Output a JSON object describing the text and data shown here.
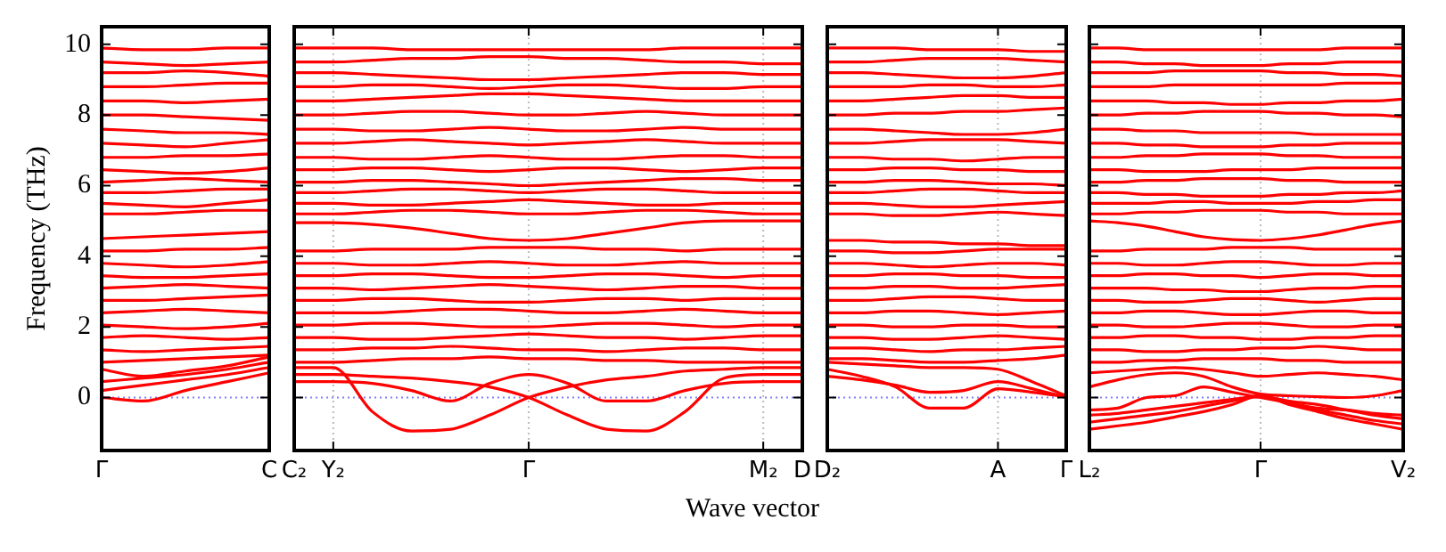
{
  "chart_data": [
    {
      "type": "line",
      "ylabel": "Frequency (THz)",
      "color": "#ff0000",
      "categories": [
        "Γ",
        null,
        null,
        null,
        "C"
      ],
      "ylim": [
        -1.5,
        10.5
      ],
      "yticks": [
        0,
        2,
        4,
        6,
        8,
        10
      ],
      "ref_lines": [
        {
          "axis": "y",
          "value": 0,
          "color": "#8080ff",
          "line_style": "dotted"
        }
      ],
      "series": [
        {
          "values": [
            0,
            -0.1,
            0.2,
            0.45,
            0.7
          ]
        },
        {
          "values": [
            0.2,
            0.35,
            0.5,
            0.65,
            0.85
          ]
        },
        {
          "values": [
            0.45,
            0.55,
            0.65,
            0.8,
            1.0
          ]
        },
        {
          "values": [
            0.8,
            0.6,
            0.75,
            0.9,
            1.15
          ]
        },
        {
          "values": [
            4.5,
            4.55,
            4.6,
            4.65,
            4.7
          ]
        },
        {
          "values": [
            1.0,
            1.05,
            1.1,
            1.15,
            1.2
          ]
        },
        {
          "values": [
            1.35,
            1.3,
            1.35,
            1.4,
            1.45
          ]
        },
        {
          "values": [
            1.7,
            1.75,
            1.7,
            1.65,
            1.7
          ]
        },
        {
          "values": [
            2.05,
            2.0,
            1.95,
            2.0,
            2.1
          ]
        },
        {
          "values": [
            2.4,
            2.45,
            2.5,
            2.45,
            2.4
          ]
        },
        {
          "values": [
            2.75,
            2.75,
            2.8,
            2.85,
            2.9
          ]
        },
        {
          "values": [
            3.1,
            3.15,
            3.2,
            3.15,
            3.1
          ]
        },
        {
          "values": [
            3.45,
            3.4,
            3.4,
            3.45,
            3.5
          ]
        },
        {
          "values": [
            3.8,
            3.75,
            3.7,
            3.75,
            3.85
          ]
        },
        {
          "values": [
            4.15,
            4.15,
            4.2,
            4.2,
            4.25
          ]
        },
        {
          "values": [
            5.2,
            5.2,
            5.25,
            5.3,
            5.3
          ]
        },
        {
          "values": [
            5.5,
            5.45,
            5.4,
            5.5,
            5.6
          ]
        },
        {
          "values": [
            5.8,
            5.8,
            5.85,
            5.9,
            5.9
          ]
        },
        {
          "values": [
            6.1,
            6.15,
            6.2,
            6.15,
            6.1
          ]
        },
        {
          "values": [
            6.45,
            6.4,
            6.35,
            6.4,
            6.5
          ]
        },
        {
          "values": [
            6.8,
            6.8,
            6.85,
            6.85,
            6.9
          ]
        },
        {
          "values": [
            7.2,
            7.15,
            7.1,
            7.2,
            7.3
          ]
        },
        {
          "values": [
            7.6,
            7.55,
            7.5,
            7.5,
            7.45
          ]
        },
        {
          "values": [
            8.0,
            8.0,
            7.95,
            7.9,
            7.85
          ]
        },
        {
          "values": [
            8.4,
            8.4,
            8.35,
            8.4,
            8.45
          ]
        },
        {
          "values": [
            8.8,
            8.8,
            8.85,
            8.9,
            8.9
          ]
        },
        {
          "values": [
            9.2,
            9.2,
            9.25,
            9.2,
            9.1
          ]
        },
        {
          "values": [
            9.5,
            9.45,
            9.4,
            9.45,
            9.5
          ]
        },
        {
          "values": [
            9.9,
            9.85,
            9.85,
            9.9,
            9.9
          ]
        }
      ]
    },
    {
      "type": "line",
      "xlabel": "Wave vector",
      "color": "#ff0000",
      "categories": [
        "C₂",
        "Y₂",
        null,
        null,
        null,
        null,
        "Γ",
        null,
        null,
        null,
        null,
        null,
        "M₂",
        "D"
      ],
      "ylim": [
        -1.5,
        10.5
      ],
      "yticks": [
        0,
        2,
        4,
        6,
        8,
        10
      ],
      "tick_labels": "x",
      "ref_lines": [
        {
          "axis": "y",
          "value": 0,
          "color": "#8080ff",
          "line_style": "dotted"
        },
        {
          "axis": "x",
          "value": "Y₂",
          "color": "#bbbbbb",
          "line_style": "dotted"
        },
        {
          "axis": "x",
          "value": "Γ",
          "color": "#bbbbbb",
          "line_style": "dotted"
        },
        {
          "axis": "x",
          "value": "M₂",
          "color": "#bbbbbb",
          "line_style": "dotted"
        }
      ],
      "series": [
        {
          "values": [
            0.85,
            0.85,
            -0.4,
            -0.95,
            -0.9,
            -0.5,
            0,
            0.3,
            0.5,
            0.6,
            0.75,
            0.8,
            0.85,
            0.85
          ]
        },
        {
          "values": [
            0.65,
            0.65,
            0.6,
            0.55,
            0.45,
            0.3,
            0,
            -0.5,
            -0.9,
            -0.95,
            -0.4,
            0.55,
            0.65,
            0.65
          ]
        },
        {
          "values": [
            0.45,
            0.45,
            0.4,
            0.2,
            -0.1,
            0.4,
            0.65,
            0.4,
            -0.1,
            -0.1,
            0.2,
            0.4,
            0.45,
            0.45
          ]
        },
        {
          "values": [
            4.95,
            4.95,
            4.9,
            4.8,
            4.65,
            4.5,
            4.45,
            4.5,
            4.65,
            4.8,
            4.95,
            5.0,
            5.0,
            5.0
          ]
        },
        {
          "values": [
            1.0,
            1.0,
            1.05,
            1.1,
            1.1,
            1.15,
            1.1,
            1.1,
            1.05,
            1.05,
            1.0,
            1.0,
            1.0,
            1.0
          ]
        },
        {
          "values": [
            1.35,
            1.35,
            1.4,
            1.4,
            1.45,
            1.4,
            1.35,
            1.35,
            1.3,
            1.35,
            1.4,
            1.4,
            1.35,
            1.35
          ]
        },
        {
          "values": [
            1.7,
            1.7,
            1.65,
            1.65,
            1.7,
            1.75,
            1.8,
            1.75,
            1.7,
            1.7,
            1.65,
            1.7,
            1.75,
            1.75
          ]
        },
        {
          "values": [
            2.05,
            2.05,
            2.1,
            2.1,
            2.05,
            2.0,
            2.0,
            2.05,
            2.1,
            2.1,
            2.05,
            2.0,
            2.05,
            2.05
          ]
        },
        {
          "values": [
            2.4,
            2.4,
            2.4,
            2.45,
            2.5,
            2.5,
            2.45,
            2.4,
            2.4,
            2.45,
            2.5,
            2.45,
            2.4,
            2.4
          ]
        },
        {
          "values": [
            2.75,
            2.75,
            2.8,
            2.8,
            2.75,
            2.7,
            2.7,
            2.75,
            2.8,
            2.8,
            2.75,
            2.8,
            2.8,
            2.8
          ]
        },
        {
          "values": [
            3.1,
            3.1,
            3.05,
            3.1,
            3.15,
            3.2,
            3.15,
            3.1,
            3.05,
            3.1,
            3.15,
            3.15,
            3.1,
            3.1
          ]
        },
        {
          "values": [
            3.45,
            3.45,
            3.5,
            3.5,
            3.45,
            3.4,
            3.4,
            3.45,
            3.5,
            3.5,
            3.45,
            3.4,
            3.45,
            3.45
          ]
        },
        {
          "values": [
            3.8,
            3.8,
            3.75,
            3.75,
            3.8,
            3.85,
            3.8,
            3.75,
            3.75,
            3.8,
            3.85,
            3.8,
            3.8,
            3.8
          ]
        },
        {
          "values": [
            4.15,
            4.15,
            4.2,
            4.2,
            4.2,
            4.25,
            4.25,
            4.25,
            4.2,
            4.2,
            4.15,
            4.2,
            4.2,
            4.2
          ]
        },
        {
          "values": [
            5.2,
            5.2,
            5.25,
            5.3,
            5.3,
            5.25,
            5.2,
            5.2,
            5.25,
            5.3,
            5.3,
            5.25,
            5.2,
            5.2
          ]
        },
        {
          "values": [
            5.5,
            5.5,
            5.45,
            5.45,
            5.5,
            5.55,
            5.6,
            5.55,
            5.5,
            5.45,
            5.45,
            5.5,
            5.5,
            5.5
          ]
        },
        {
          "values": [
            5.8,
            5.8,
            5.85,
            5.9,
            5.9,
            5.85,
            5.8,
            5.85,
            5.9,
            5.9,
            5.85,
            5.8,
            5.8,
            5.8
          ]
        },
        {
          "values": [
            6.1,
            6.1,
            6.15,
            6.15,
            6.1,
            6.05,
            6.0,
            6.05,
            6.1,
            6.15,
            6.2,
            6.2,
            6.15,
            6.15
          ]
        },
        {
          "values": [
            6.45,
            6.45,
            6.5,
            6.5,
            6.45,
            6.4,
            6.45,
            6.5,
            6.5,
            6.45,
            6.4,
            6.45,
            6.5,
            6.5
          ]
        },
        {
          "values": [
            6.8,
            6.8,
            6.75,
            6.75,
            6.8,
            6.85,
            6.8,
            6.75,
            6.75,
            6.8,
            6.85,
            6.85,
            6.8,
            6.8
          ]
        },
        {
          "values": [
            7.2,
            7.2,
            7.25,
            7.3,
            7.25,
            7.2,
            7.15,
            7.2,
            7.25,
            7.3,
            7.25,
            7.2,
            7.2,
            7.2
          ]
        },
        {
          "values": [
            7.6,
            7.6,
            7.55,
            7.55,
            7.6,
            7.65,
            7.6,
            7.55,
            7.55,
            7.6,
            7.65,
            7.6,
            7.6,
            7.6
          ]
        },
        {
          "values": [
            8.0,
            8.0,
            8.05,
            8.1,
            8.1,
            8.05,
            8.0,
            8.0,
            8.05,
            8.1,
            8.05,
            8.0,
            8.0,
            8.0
          ]
        },
        {
          "values": [
            8.4,
            8.4,
            8.45,
            8.5,
            8.55,
            8.6,
            8.6,
            8.55,
            8.5,
            8.45,
            8.4,
            8.4,
            8.4,
            8.4
          ]
        },
        {
          "values": [
            8.8,
            8.8,
            8.85,
            8.85,
            8.8,
            8.75,
            8.8,
            8.85,
            8.85,
            8.8,
            8.75,
            8.75,
            8.8,
            8.8
          ]
        },
        {
          "values": [
            9.2,
            9.2,
            9.15,
            9.1,
            9.05,
            9.0,
            9.0,
            9.05,
            9.1,
            9.15,
            9.2,
            9.2,
            9.15,
            9.15
          ]
        },
        {
          "values": [
            9.5,
            9.5,
            9.55,
            9.6,
            9.6,
            9.65,
            9.65,
            9.6,
            9.6,
            9.55,
            9.5,
            9.5,
            9.45,
            9.45
          ]
        },
        {
          "values": [
            9.9,
            9.9,
            9.9,
            9.85,
            9.85,
            9.85,
            9.85,
            9.85,
            9.85,
            9.85,
            9.9,
            9.9,
            9.9,
            9.9
          ]
        }
      ]
    },
    {
      "type": "line",
      "color": "#ff0000",
      "categories": [
        "D₂",
        null,
        null,
        null,
        null,
        "A",
        null,
        "Γ"
      ],
      "ylim": [
        -1.5,
        10.5
      ],
      "yticks": [
        0,
        2,
        4,
        6,
        8,
        10
      ],
      "tick_labels": "x",
      "ref_lines": [
        {
          "axis": "y",
          "value": 0,
          "color": "#8080ff",
          "line_style": "dotted"
        },
        {
          "axis": "x",
          "value": "A",
          "color": "#bbbbbb",
          "line_style": "dotted"
        }
      ],
      "series": [
        {
          "values": [
            0.8,
            0.6,
            0.3,
            -0.3,
            -0.3,
            0.25,
            0.15,
            0.02
          ]
        },
        {
          "values": [
            0.6,
            0.5,
            0.35,
            0.15,
            0.2,
            0.45,
            0.25,
            0
          ]
        },
        {
          "values": [
            1.0,
            0.95,
            0.9,
            0.85,
            0.85,
            0.8,
            0.45,
            0.05
          ]
        },
        {
          "values": [
            4.45,
            4.45,
            4.4,
            4.4,
            4.35,
            4.35,
            4.3,
            4.3
          ]
        },
        {
          "values": [
            1.1,
            1.1,
            1.05,
            1.0,
            1.0,
            1.05,
            1.1,
            1.2
          ]
        },
        {
          "values": [
            1.4,
            1.4,
            1.35,
            1.3,
            1.35,
            1.35,
            1.4,
            1.45
          ]
        },
        {
          "values": [
            1.7,
            1.7,
            1.65,
            1.65,
            1.7,
            1.75,
            1.7,
            1.65
          ]
        },
        {
          "values": [
            2.05,
            2.05,
            2.0,
            2.0,
            2.05,
            2.05,
            2.0,
            2.0
          ]
        },
        {
          "values": [
            2.4,
            2.4,
            2.45,
            2.45,
            2.4,
            2.35,
            2.4,
            2.45
          ]
        },
        {
          "values": [
            2.75,
            2.75,
            2.8,
            2.85,
            2.85,
            2.8,
            2.75,
            2.75
          ]
        },
        {
          "values": [
            3.1,
            3.1,
            3.15,
            3.15,
            3.1,
            3.1,
            3.15,
            3.2
          ]
        },
        {
          "values": [
            3.45,
            3.45,
            3.5,
            3.5,
            3.45,
            3.45,
            3.4,
            3.4
          ]
        },
        {
          "values": [
            3.8,
            3.8,
            3.75,
            3.7,
            3.75,
            3.8,
            3.8,
            3.75
          ]
        },
        {
          "values": [
            4.15,
            4.15,
            4.1,
            4.1,
            4.15,
            4.2,
            4.2,
            4.2
          ]
        },
        {
          "values": [
            5.2,
            5.2,
            5.15,
            5.15,
            5.2,
            5.25,
            5.2,
            5.15
          ]
        },
        {
          "values": [
            5.5,
            5.5,
            5.45,
            5.4,
            5.4,
            5.45,
            5.5,
            5.55
          ]
        },
        {
          "values": [
            5.8,
            5.8,
            5.85,
            5.9,
            5.9,
            5.85,
            5.8,
            5.8
          ]
        },
        {
          "values": [
            6.1,
            6.1,
            6.15,
            6.15,
            6.1,
            6.05,
            6.05,
            6.0
          ]
        },
        {
          "values": [
            6.45,
            6.45,
            6.5,
            6.5,
            6.45,
            6.45,
            6.4,
            6.4
          ]
        },
        {
          "values": [
            6.8,
            6.8,
            6.75,
            6.75,
            6.7,
            6.75,
            6.8,
            6.8
          ]
        },
        {
          "values": [
            7.2,
            7.2,
            7.25,
            7.3,
            7.3,
            7.3,
            7.25,
            7.2
          ]
        },
        {
          "values": [
            7.6,
            7.6,
            7.55,
            7.5,
            7.45,
            7.45,
            7.5,
            7.6
          ]
        },
        {
          "values": [
            8.0,
            8.0,
            8.05,
            8.05,
            8.1,
            8.1,
            8.15,
            8.2
          ]
        },
        {
          "values": [
            8.4,
            8.4,
            8.45,
            8.5,
            8.55,
            8.55,
            8.5,
            8.5
          ]
        },
        {
          "values": [
            8.8,
            8.8,
            8.8,
            8.85,
            8.85,
            8.8,
            8.8,
            8.85
          ]
        },
        {
          "values": [
            9.2,
            9.2,
            9.15,
            9.1,
            9.05,
            9.05,
            9.1,
            9.2
          ]
        },
        {
          "values": [
            9.5,
            9.5,
            9.55,
            9.6,
            9.6,
            9.6,
            9.55,
            9.5
          ]
        },
        {
          "values": [
            9.9,
            9.9,
            9.9,
            9.85,
            9.85,
            9.85,
            9.8,
            9.8
          ]
        }
      ]
    },
    {
      "type": "line",
      "color": "#ff0000",
      "categories": [
        "L₂",
        null,
        null,
        null,
        null,
        null,
        "Γ",
        null,
        null,
        null,
        null,
        "V₂"
      ],
      "ylim": [
        -1.5,
        10.5
      ],
      "yticks": [
        0,
        2,
        4,
        6,
        8,
        10
      ],
      "tick_labels": "x",
      "ref_lines": [
        {
          "axis": "y",
          "value": 0,
          "color": "#8080ff",
          "line_style": "dotted"
        },
        {
          "axis": "x",
          "value": "Γ",
          "color": "#bbbbbb",
          "line_style": "dotted"
        }
      ],
      "series": [
        {
          "values": [
            -0.35,
            -0.3,
            0.0,
            0.05,
            0.3,
            0.15,
            0,
            -0.15,
            -0.3,
            -0.35,
            -0.45,
            -0.5
          ]
        },
        {
          "values": [
            -0.5,
            -0.45,
            -0.35,
            -0.25,
            -0.15,
            -0.05,
            0.02,
            -0.1,
            -0.2,
            -0.35,
            -0.5,
            -0.6
          ]
        },
        {
          "values": [
            -0.7,
            -0.6,
            -0.5,
            -0.4,
            -0.25,
            -0.1,
            0.04,
            -0.15,
            -0.35,
            -0.5,
            -0.65,
            -0.75
          ]
        },
        {
          "values": [
            -0.9,
            -0.8,
            -0.7,
            -0.55,
            -0.4,
            -0.2,
            0.06,
            -0.2,
            -0.4,
            -0.6,
            -0.75,
            -0.9
          ]
        },
        {
          "values": [
            0.3,
            0.5,
            0.65,
            0.7,
            0.6,
            0.3,
            0.1,
            0.05,
            0.02,
            0.0,
            0.05,
            0.2
          ]
        },
        {
          "values": [
            0.7,
            0.75,
            0.8,
            0.85,
            0.8,
            0.7,
            0.6,
            0.65,
            0.7,
            0.65,
            0.6,
            0.5
          ]
        },
        {
          "values": [
            5.0,
            4.95,
            4.85,
            4.7,
            4.55,
            4.47,
            4.45,
            4.5,
            4.6,
            4.75,
            4.9,
            5.0
          ]
        },
        {
          "values": [
            1.0,
            1.0,
            1.05,
            1.05,
            1.1,
            1.1,
            1.1,
            1.05,
            1.05,
            1.0,
            1.0,
            1.0
          ]
        },
        {
          "values": [
            1.35,
            1.35,
            1.3,
            1.3,
            1.35,
            1.35,
            1.4,
            1.4,
            1.45,
            1.4,
            1.35,
            1.35
          ]
        },
        {
          "values": [
            1.7,
            1.7,
            1.75,
            1.75,
            1.7,
            1.7,
            1.65,
            1.65,
            1.7,
            1.7,
            1.75,
            1.75
          ]
        },
        {
          "values": [
            2.05,
            2.05,
            2.0,
            2.0,
            2.05,
            2.1,
            2.1,
            2.05,
            2.0,
            2.0,
            2.05,
            2.05
          ]
        },
        {
          "values": [
            2.4,
            2.4,
            2.45,
            2.45,
            2.4,
            2.35,
            2.35,
            2.4,
            2.45,
            2.45,
            2.4,
            2.4
          ]
        },
        {
          "values": [
            2.75,
            2.75,
            2.7,
            2.7,
            2.75,
            2.8,
            2.8,
            2.75,
            2.7,
            2.75,
            2.8,
            2.8
          ]
        },
        {
          "values": [
            3.1,
            3.1,
            3.1,
            3.05,
            3.05,
            3.0,
            3.0,
            3.05,
            3.1,
            3.1,
            3.15,
            3.15
          ]
        },
        {
          "values": [
            3.45,
            3.45,
            3.5,
            3.5,
            3.45,
            3.45,
            3.4,
            3.45,
            3.5,
            3.5,
            3.45,
            3.45
          ]
        },
        {
          "values": [
            3.8,
            3.8,
            3.75,
            3.75,
            3.8,
            3.85,
            3.85,
            3.8,
            3.75,
            3.75,
            3.8,
            3.8
          ]
        },
        {
          "values": [
            4.15,
            4.15,
            4.2,
            4.2,
            4.2,
            4.25,
            4.25,
            4.25,
            4.2,
            4.2,
            4.2,
            4.2
          ]
        },
        {
          "values": [
            5.2,
            5.2,
            5.25,
            5.25,
            5.3,
            5.3,
            5.3,
            5.25,
            5.25,
            5.2,
            5.2,
            5.2
          ]
        },
        {
          "values": [
            5.5,
            5.5,
            5.5,
            5.55,
            5.55,
            5.5,
            5.5,
            5.5,
            5.55,
            5.55,
            5.6,
            5.6
          ]
        },
        {
          "values": [
            5.8,
            5.8,
            5.75,
            5.75,
            5.7,
            5.7,
            5.7,
            5.75,
            5.75,
            5.8,
            5.8,
            5.85
          ]
        },
        {
          "values": [
            6.1,
            6.1,
            6.15,
            6.15,
            6.2,
            6.2,
            6.2,
            6.15,
            6.15,
            6.1,
            6.1,
            6.1
          ]
        },
        {
          "values": [
            6.45,
            6.45,
            6.4,
            6.4,
            6.4,
            6.45,
            6.45,
            6.45,
            6.5,
            6.5,
            6.5,
            6.5
          ]
        },
        {
          "values": [
            6.8,
            6.8,
            6.85,
            6.85,
            6.9,
            6.9,
            6.9,
            6.85,
            6.85,
            6.8,
            6.8,
            6.8
          ]
        },
        {
          "values": [
            7.2,
            7.2,
            7.15,
            7.15,
            7.1,
            7.1,
            7.1,
            7.15,
            7.15,
            7.2,
            7.2,
            7.2
          ]
        },
        {
          "values": [
            7.6,
            7.6,
            7.55,
            7.55,
            7.5,
            7.5,
            7.5,
            7.5,
            7.45,
            7.45,
            7.45,
            7.45
          ]
        },
        {
          "values": [
            8.0,
            8.0,
            8.05,
            8.05,
            8.1,
            8.1,
            8.1,
            8.05,
            8.05,
            8.0,
            8.0,
            7.95
          ]
        },
        {
          "values": [
            8.4,
            8.4,
            8.4,
            8.35,
            8.35,
            8.3,
            8.3,
            8.35,
            8.35,
            8.4,
            8.4,
            8.45
          ]
        },
        {
          "values": [
            8.8,
            8.8,
            8.8,
            8.85,
            8.85,
            8.85,
            8.85,
            8.85,
            8.85,
            8.9,
            8.9,
            8.9
          ]
        },
        {
          "values": [
            9.2,
            9.2,
            9.2,
            9.25,
            9.25,
            9.25,
            9.25,
            9.2,
            9.2,
            9.15,
            9.15,
            9.1
          ]
        },
        {
          "values": [
            9.5,
            9.5,
            9.45,
            9.45,
            9.4,
            9.4,
            9.4,
            9.45,
            9.45,
            9.5,
            9.5,
            9.5
          ]
        },
        {
          "values": [
            9.9,
            9.9,
            9.85,
            9.85,
            9.85,
            9.85,
            9.85,
            9.85,
            9.85,
            9.9,
            9.9,
            9.9
          ]
        }
      ]
    }
  ]
}
